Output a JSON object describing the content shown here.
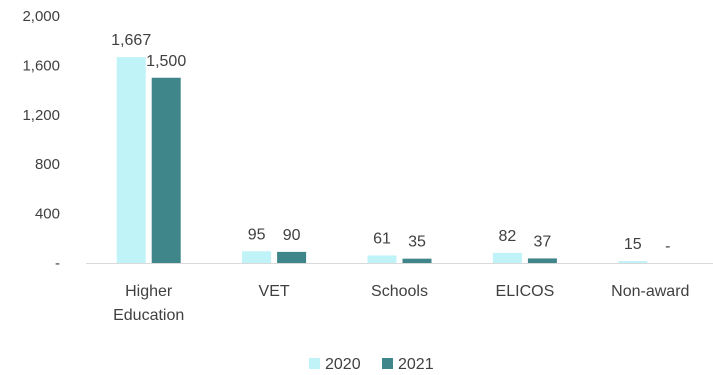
{
  "chart_data": {
    "type": "bar",
    "categories": [
      [
        "Higher",
        "Education"
      ],
      [
        "VET"
      ],
      [
        "Schools"
      ],
      [
        "ELICOS"
      ],
      [
        "Non-award"
      ]
    ],
    "series": [
      {
        "name": "2020",
        "color": "#bff3f8",
        "values": [
          1667,
          95,
          61,
          82,
          15
        ],
        "labels": [
          "1,667",
          "95",
          "61",
          "82",
          "15"
        ]
      },
      {
        "name": "2021",
        "color": "#3f868a",
        "values": [
          1500,
          90,
          35,
          37,
          0
        ],
        "labels": [
          "1,500",
          "90",
          "35",
          "37",
          "-"
        ]
      }
    ],
    "y_ticks": [
      0,
      400,
      800,
      1200,
      1600,
      2000
    ],
    "y_tick_labels": [
      "-",
      "400",
      "800",
      "1,200",
      "1,600",
      "2,000"
    ],
    "ylim": [
      0,
      2000
    ],
    "grid": false,
    "legend_position": "bottom",
    "axis_color": "#d9d9d9"
  }
}
